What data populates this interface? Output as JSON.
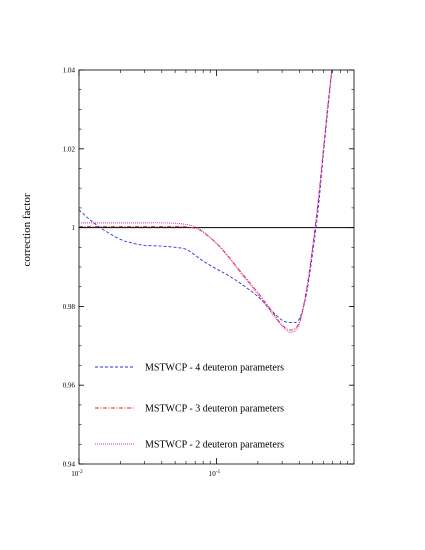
{
  "chart_data": {
    "type": "line",
    "title": "",
    "xlabel": "",
    "ylabel": "correction factor",
    "xscale": "log",
    "xlim": [
      0.01,
      1.0
    ],
    "ylim": [
      0.94,
      1.04
    ],
    "x_ticks": [
      {
        "value": 0.01,
        "base": "10",
        "exp": "-2"
      },
      {
        "value": 0.1,
        "base": "10",
        "exp": "-1"
      }
    ],
    "y_ticks": [
      "0.94",
      "0.96",
      "0.98",
      "1",
      "1.02",
      "1.04"
    ],
    "reference_line": 1.0,
    "grid": false,
    "legend_position": "bottom-left",
    "series": [
      {
        "name": "MSTWCP - 4 deuteron parameters",
        "color": "#2233dd",
        "dash": "dashed",
        "x": [
          0.01,
          0.012,
          0.015,
          0.02,
          0.025,
          0.03,
          0.04,
          0.05,
          0.06,
          0.07,
          0.08,
          0.1,
          0.12,
          0.15,
          0.2,
          0.25,
          0.3,
          0.35,
          0.4,
          0.45,
          0.5,
          0.55,
          0.6,
          0.65,
          0.7
        ],
        "y": [
          1.0045,
          1.002,
          0.9995,
          0.997,
          0.996,
          0.9955,
          0.9953,
          0.995,
          0.9945,
          0.993,
          0.9915,
          0.9895,
          0.988,
          0.9858,
          0.9825,
          0.979,
          0.9765,
          0.9759,
          0.9768,
          0.983,
          0.9935,
          1.005,
          1.019,
          1.031,
          1.042
        ]
      },
      {
        "name": "MSTWCP - 3 deuteron parameters",
        "color": "#dd2233",
        "dash": "dashdot",
        "x": [
          0.01,
          0.015,
          0.02,
          0.03,
          0.04,
          0.05,
          0.06,
          0.07,
          0.08,
          0.1,
          0.12,
          0.15,
          0.2,
          0.25,
          0.3,
          0.35,
          0.4,
          0.45,
          0.5,
          0.55,
          0.6,
          0.65,
          0.7
        ],
        "y": [
          1.0003,
          1.0003,
          1.0003,
          1.0003,
          1.0003,
          1.0003,
          1.0002,
          0.9998,
          0.9988,
          0.996,
          0.993,
          0.9888,
          0.9835,
          0.979,
          0.9753,
          0.974,
          0.976,
          0.984,
          0.995,
          1.007,
          1.02,
          1.032,
          1.042
        ]
      },
      {
        "name": "MSTWCP - 2 deuteron parameters",
        "color": "#dd22bb",
        "dash": "dotted",
        "x": [
          0.01,
          0.015,
          0.02,
          0.03,
          0.04,
          0.05,
          0.06,
          0.07,
          0.08,
          0.1,
          0.12,
          0.15,
          0.2,
          0.25,
          0.3,
          0.35,
          0.4,
          0.45,
          0.5,
          0.55,
          0.6,
          0.65,
          0.7
        ],
        "y": [
          1.0012,
          1.0012,
          1.0012,
          1.0012,
          1.0012,
          1.0011,
          1.0008,
          1.0002,
          0.999,
          0.996,
          0.9928,
          0.9885,
          0.983,
          0.9785,
          0.975,
          0.9734,
          0.9755,
          0.9835,
          0.995,
          1.007,
          1.02,
          1.032,
          1.042
        ]
      }
    ]
  }
}
